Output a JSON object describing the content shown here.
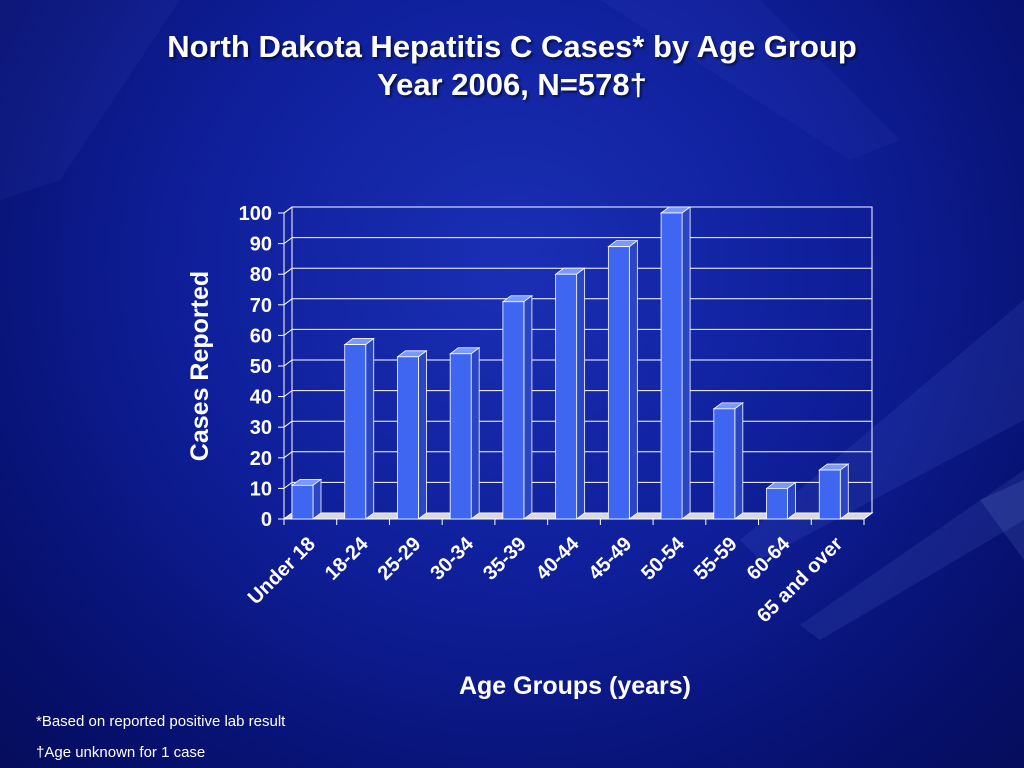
{
  "slide": {
    "title_line1": "North Dakota Hepatitis C Cases* by Age Group",
    "title_line2": "Year 2006, N=578†",
    "footnote1": "*Based on reported positive lab result",
    "footnote2": "†Age unknown for 1 case"
  },
  "colors": {
    "bar_front": "#3f66f0",
    "bar_side": "#2a46c4",
    "bar_top": "#7b98ff",
    "gridline": "#ffffff",
    "background": "#0f1f9a"
  },
  "chart_data": {
    "type": "bar",
    "title": "",
    "xlabel": "Age Groups (years)",
    "ylabel": "Cases Reported",
    "ylim": [
      0,
      100
    ],
    "yticks": [
      0,
      10,
      20,
      30,
      40,
      50,
      60,
      70,
      80,
      90,
      100
    ],
    "grid": true,
    "categories": [
      "Under 18",
      "18-24",
      "25-29",
      "30-34",
      "35-39",
      "40-44",
      "45-49",
      "50-54",
      "55-59",
      "60-64",
      "65 and over"
    ],
    "values": [
      11,
      57,
      53,
      54,
      71,
      80,
      89,
      100,
      36,
      10,
      16
    ]
  }
}
